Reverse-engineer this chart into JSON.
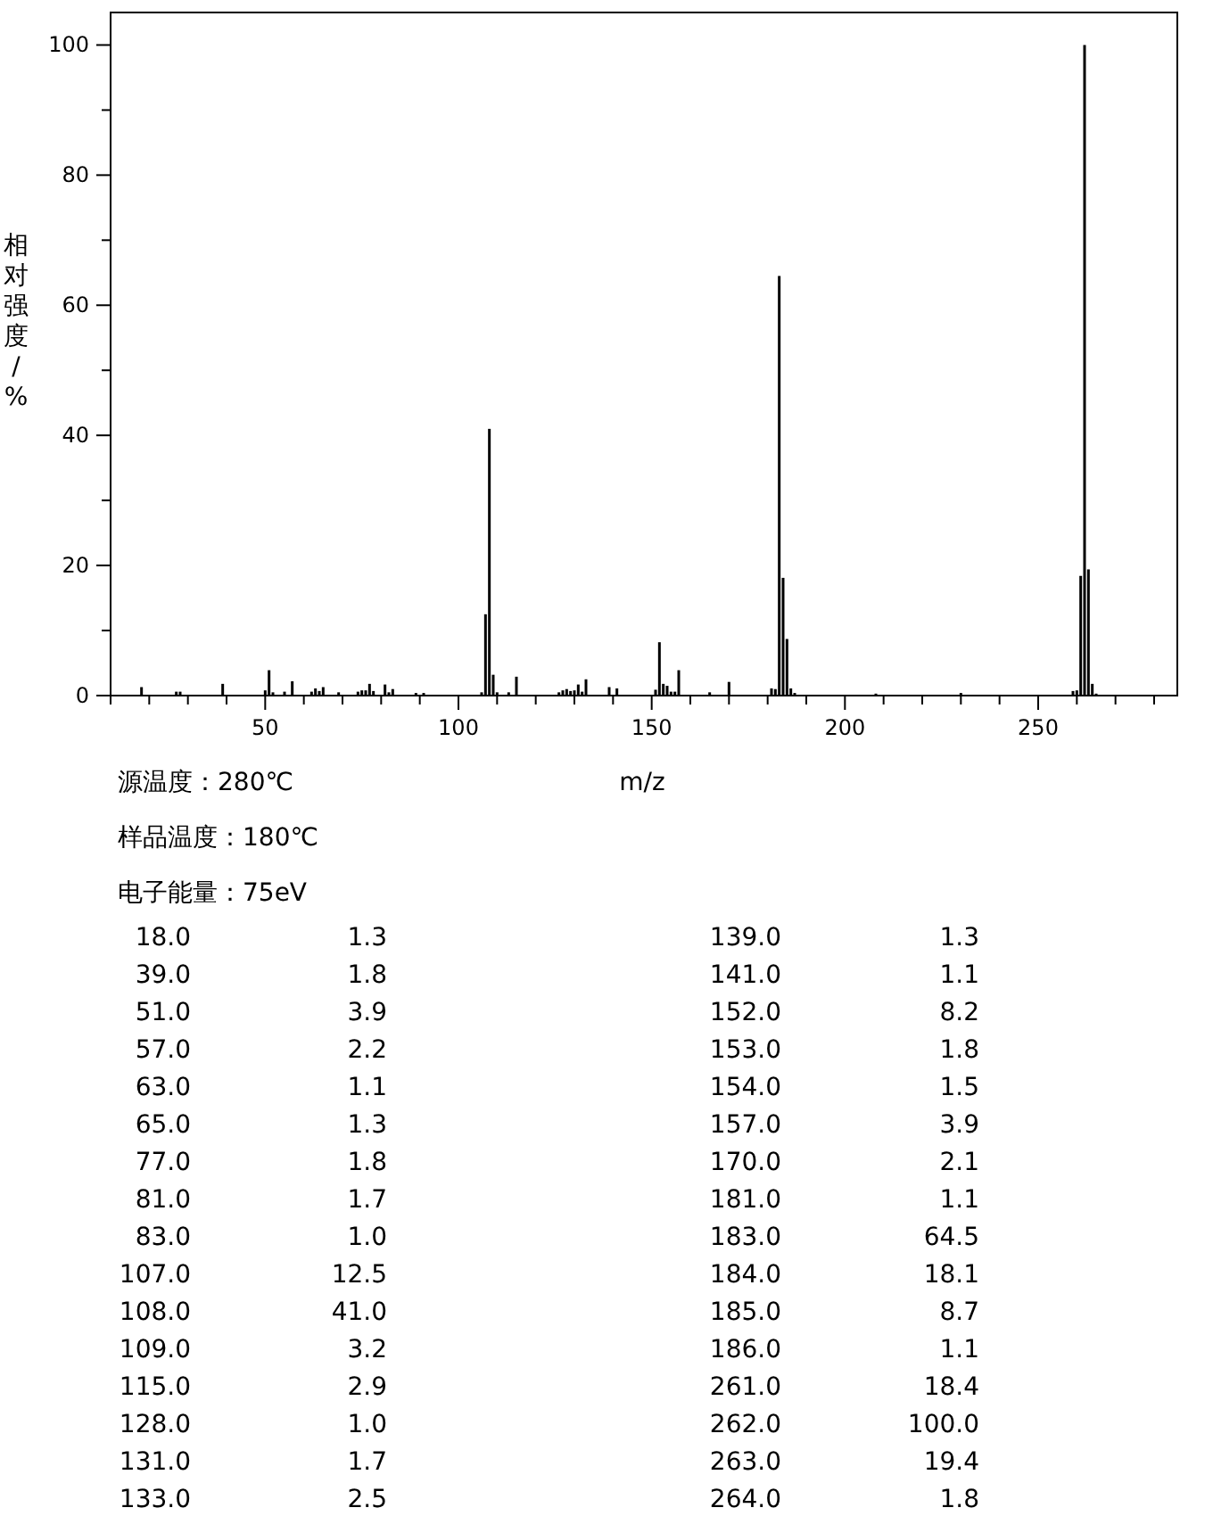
{
  "chart_data": {
    "type": "bar",
    "xlabel": "m/z",
    "ylabel": "相对强度/%",
    "color": "#000000",
    "annotations": [
      "源温度：280℃",
      "样品温度：180℃",
      "电子能量：75eV",
      "18.0",
      "1.3",
      "39.0",
      "1.8",
      "51.0",
      "3.9",
      "57.0",
      "2.2",
      "63.0",
      "1.1",
      "65.0",
      "1.3",
      "77.0",
      "1.8",
      "81.0",
      "1.7",
      "83.0",
      "1.0",
      "107.0",
      "12.5",
      "108.0",
      "41.0",
      "109.0",
      "3.2",
      "115.0",
      "2.9",
      "128.0",
      "1.0",
      "131.0",
      "1.7",
      "133.0",
      "2.5",
      "139.0",
      "1.3",
      "141.0",
      "1.1",
      "152.0",
      "8.2",
      "153.0",
      "1.8",
      "154.0",
      "1.5",
      "157.0",
      "3.9",
      "170.0",
      "2.1",
      "181.0",
      "1.1",
      "183.0",
      "64.5",
      "184.0",
      "18.1",
      "185.0",
      "8.7",
      "186.0",
      "1.1",
      "261.0",
      "18.4",
      "262.0",
      "100.0",
      "263.0",
      "19.4",
      "264.0",
      "1.8"
    ],
    "xlim": [
      10,
      286
    ],
    "ylim": [
      0,
      105
    ],
    "xticks": [
      {
        "value": 10,
        "label": null
      },
      {
        "value": 20,
        "label": null
      },
      {
        "value": 30,
        "label": null
      },
      {
        "value": 40,
        "label": null
      },
      50,
      {
        "value": 60,
        "label": null
      },
      {
        "value": 70,
        "label": null
      },
      {
        "value": 80,
        "label": null
      },
      {
        "value": 90,
        "label": null
      },
      100,
      {
        "value": 110,
        "label": null
      },
      {
        "value": 120,
        "label": null
      },
      {
        "value": 130,
        "label": null
      },
      {
        "value": 140,
        "label": null
      },
      150,
      {
        "value": 160,
        "label": null
      },
      {
        "value": 170,
        "label": null
      },
      {
        "value": 180,
        "label": null
      },
      {
        "value": 190,
        "label": null
      },
      200,
      {
        "value": 210,
        "label": null
      },
      {
        "value": 220,
        "label": null
      },
      {
        "value": 230,
        "label": null
      },
      {
        "value": 240,
        "label": null
      },
      250,
      {
        "value": 260,
        "label": null
      },
      {
        "value": 270,
        "label": null
      },
      {
        "value": 280,
        "label": null
      }
    ],
    "yticks": [
      0,
      {
        "value": 10,
        "label": null
      },
      20,
      {
        "value": 30,
        "label": null
      },
      40,
      {
        "value": 50,
        "label": null
      },
      60,
      {
        "value": 70,
        "label": null
      },
      80,
      {
        "value": 90,
        "label": null
      },
      100
    ],
    "x": [
      18,
      27,
      28,
      39,
      50,
      51,
      52,
      55,
      57,
      62,
      63,
      64,
      65,
      69,
      74,
      75,
      76,
      77,
      78,
      81,
      82,
      83,
      89,
      91,
      106,
      107,
      108,
      109,
      110,
      113,
      115,
      126,
      127,
      128,
      129,
      130,
      131,
      132,
      133,
      139,
      141,
      151,
      152,
      153,
      154,
      155,
      156,
      157,
      165,
      170,
      181,
      182,
      183,
      184,
      185,
      186,
      187,
      208,
      230,
      259,
      260,
      261,
      262,
      263,
      264,
      265
    ],
    "values": [
      1.3,
      0.6,
      0.6,
      1.8,
      0.8,
      3.9,
      0.5,
      0.6,
      2.2,
      0.6,
      1.1,
      0.7,
      1.3,
      0.5,
      0.6,
      0.8,
      0.8,
      1.8,
      0.7,
      1.7,
      0.5,
      1.0,
      0.4,
      0.4,
      0.5,
      12.5,
      41.0,
      3.2,
      0.5,
      0.5,
      2.9,
      0.5,
      0.8,
      1.0,
      0.7,
      0.8,
      1.7,
      0.6,
      2.5,
      1.3,
      1.1,
      0.9,
      8.2,
      1.8,
      1.5,
      0.6,
      0.6,
      3.9,
      0.5,
      2.1,
      1.1,
      1.0,
      64.5,
      18.1,
      8.7,
      1.1,
      0.4,
      0.3,
      0.4,
      0.7,
      0.8,
      18.4,
      100.0,
      19.4,
      1.8,
      0.3
    ]
  }
}
